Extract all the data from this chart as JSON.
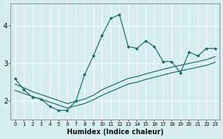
{
  "xlabel": "Humidex (Indice chaleur)",
  "bg_color": "#d6eef2",
  "grid_color": "#ffffff",
  "line_color": "#1a6b6b",
  "x_values": [
    0,
    1,
    2,
    3,
    4,
    5,
    6,
    7,
    8,
    9,
    10,
    11,
    12,
    13,
    14,
    15,
    16,
    17,
    18,
    19,
    20,
    21,
    22,
    23
  ],
  "y_main": [
    2.6,
    2.3,
    2.1,
    2.05,
    1.85,
    1.75,
    1.75,
    2.0,
    2.7,
    3.2,
    3.75,
    4.2,
    4.3,
    3.45,
    3.4,
    3.6,
    3.45,
    3.05,
    3.05,
    2.75,
    3.3,
    3.2,
    3.4,
    3.4
  ],
  "y_line1": [
    2.45,
    2.35,
    2.25,
    2.17,
    2.09,
    2.01,
    1.93,
    1.99,
    2.05,
    2.15,
    2.3,
    2.4,
    2.5,
    2.6,
    2.65,
    2.72,
    2.78,
    2.84,
    2.9,
    2.95,
    3.0,
    3.05,
    3.1,
    3.18
  ],
  "y_line2": [
    2.28,
    2.2,
    2.12,
    2.04,
    1.97,
    1.89,
    1.81,
    1.87,
    1.93,
    2.03,
    2.15,
    2.25,
    2.35,
    2.45,
    2.5,
    2.57,
    2.63,
    2.69,
    2.75,
    2.8,
    2.85,
    2.9,
    2.95,
    3.03
  ],
  "ylim": [
    1.5,
    4.6
  ],
  "yticks": [
    2,
    3,
    4
  ],
  "xtick_labels": [
    "0",
    "1",
    "2",
    "3",
    "4",
    "5",
    "6",
    "7",
    "8",
    "9",
    "10",
    "11",
    "12",
    "13",
    "14",
    "15",
    "16",
    "17",
    "18",
    "19",
    "20",
    "21",
    "22",
    "23"
  ]
}
